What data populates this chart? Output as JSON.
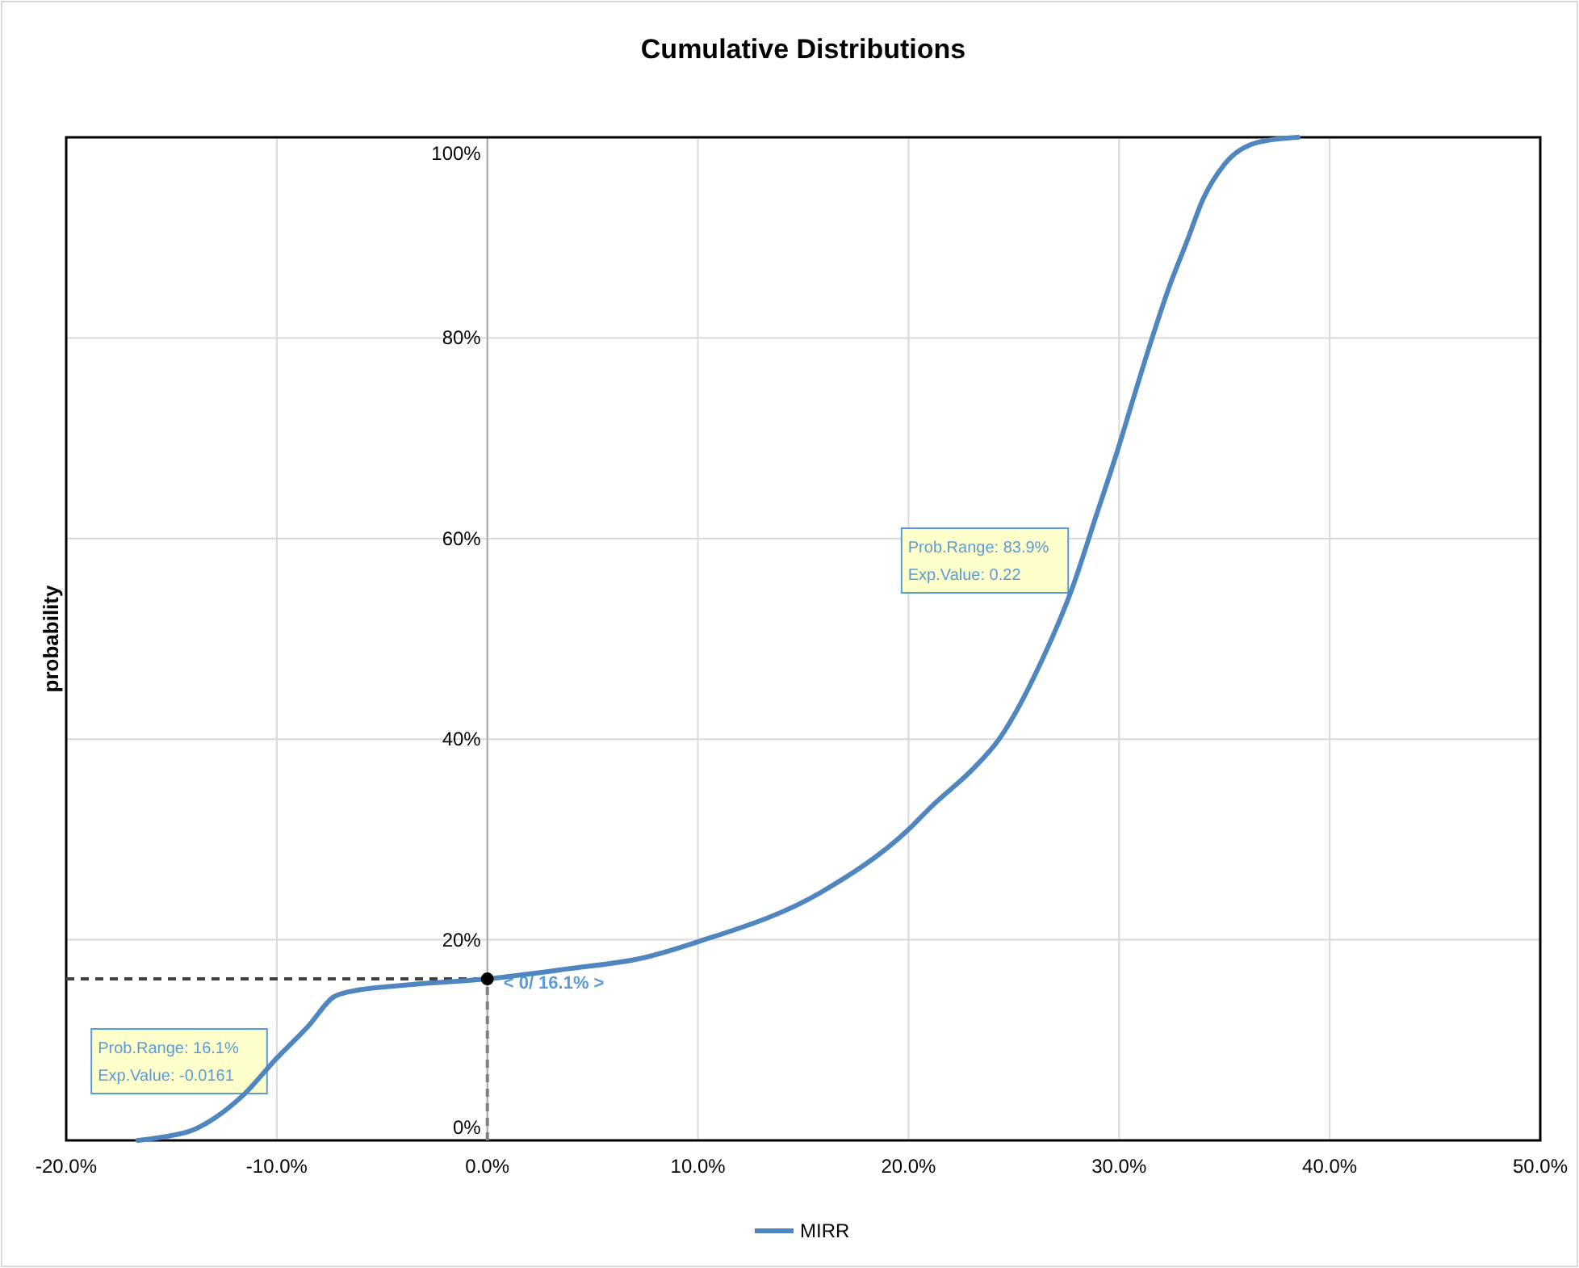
{
  "chart_data": {
    "type": "line",
    "title": "Cumulative Distributions",
    "ylabel": "probability",
    "xlim": [
      -20,
      50
    ],
    "ylim": [
      0,
      100
    ],
    "xticks": [
      {
        "value": -20,
        "label": "-20.0%"
      },
      {
        "value": -10,
        "label": "-10.0%"
      },
      {
        "value": 0,
        "label": "0.0%"
      },
      {
        "value": 10,
        "label": "10.0%"
      },
      {
        "value": 20,
        "label": "20.0%"
      },
      {
        "value": 30,
        "label": "30.0%"
      },
      {
        "value": 40,
        "label": "40.0%"
      },
      {
        "value": 50,
        "label": "50.0%"
      }
    ],
    "yticks": [
      {
        "value": 0,
        "label": "0%"
      },
      {
        "value": 20,
        "label": "20%"
      },
      {
        "value": 40,
        "label": "40%"
      },
      {
        "value": 60,
        "label": "60%"
      },
      {
        "value": 80,
        "label": "80%"
      },
      {
        "value": 100,
        "label": "100%"
      }
    ],
    "grid": true,
    "legend": "bottom",
    "series": [
      {
        "name": "MIRR",
        "color": "#4f86c0",
        "marker": "none",
        "x": [
          -16.6,
          -15.5,
          -13.9,
          -12.9,
          -11.6,
          -10.0,
          -8.5,
          -7.3,
          -6.6,
          -3.8,
          0,
          3.8,
          7.4,
          10.0,
          15.9,
          19.9,
          21.2,
          23.0,
          24.3,
          26.3,
          27.8,
          28.9,
          29.9,
          30.9,
          31.6,
          32.4,
          33.2,
          34.0,
          35.0,
          36.6,
          38.5
        ],
        "values": [
          0,
          0.3,
          1.1,
          2.3,
          4.5,
          8.2,
          11.4,
          14.3,
          14.8,
          15.5,
          16.1,
          17.1,
          18.2,
          19.8,
          24.8,
          30.8,
          33.5,
          36.9,
          40.0,
          47.7,
          55.2,
          62.2,
          68.6,
          75.5,
          80.2,
          85.2,
          89.5,
          93.9,
          97.3,
          99.5,
          100
        ]
      },
      {
        "type": "scatter",
        "color": "#000000",
        "marker": "circle",
        "x": [
          0
        ],
        "values": [
          16.1
        ]
      }
    ],
    "ref_lines": [
      {
        "axis": "y",
        "value": 16.1,
        "color": "#404040",
        "line_style": "dashed"
      },
      {
        "axis": "x",
        "value": 0,
        "label": "< 0/ 16.1% >",
        "color": "#808080",
        "line_style": "dashed"
      }
    ],
    "annotations": [
      "Prob.Range: 16.1%\nExp.Value: -0.0161",
      "Prob.Range: 83.9%\nExp.Value: 0.22"
    ]
  }
}
